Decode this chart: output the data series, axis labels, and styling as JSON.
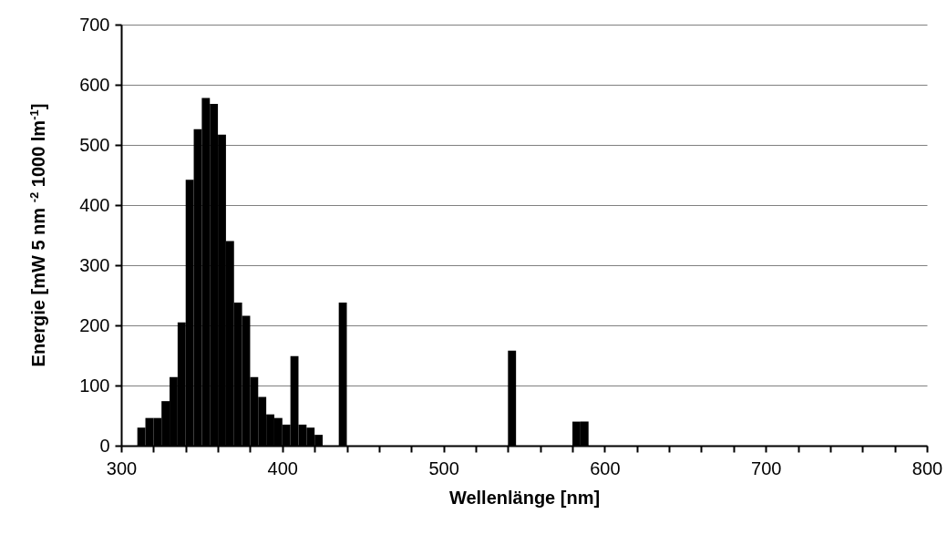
{
  "chart_data": {
    "type": "histogram",
    "xlabel": "Wellenlänge [nm]",
    "ylabel": "Energie [mW 5 nm $^{-2}$ 1000 lm$^{-1}$]",
    "color": "#000000",
    "bins": [
      310,
      315,
      320,
      325,
      330,
      335,
      340,
      345,
      350,
      355,
      360,
      365,
      370,
      375,
      380,
      385,
      390,
      395,
      400,
      405,
      410,
      415,
      420,
      425,
      430,
      435,
      440,
      445,
      450,
      455,
      460,
      465,
      470,
      475,
      480,
      485,
      490,
      495,
      500,
      505,
      510,
      515,
      520,
      525,
      530,
      535,
      540,
      545,
      550,
      555,
      560,
      565,
      570,
      575,
      580,
      585,
      590
    ],
    "values": [
      30,
      46,
      46,
      74,
      114,
      205,
      442,
      526,
      578,
      568,
      517,
      340,
      238,
      216,
      114,
      81,
      52,
      46,
      35,
      149,
      35,
      30,
      18,
      0,
      0,
      238,
      0,
      0,
      0,
      0,
      0,
      0,
      0,
      0,
      0,
      0,
      0,
      0,
      0,
      0,
      0,
      0,
      0,
      0,
      0,
      0,
      158,
      0,
      0,
      0,
      0,
      0,
      0,
      0,
      40,
      40
    ],
    "xlim": [
      300,
      800
    ],
    "xticks": [
      300,
      {
        "value": 320,
        "label": null
      },
      {
        "value": 340,
        "label": null
      },
      {
        "value": 360,
        "label": null
      },
      {
        "value": 380,
        "label": null
      },
      400,
      {
        "value": 420,
        "label": null
      },
      {
        "value": 440,
        "label": null
      },
      {
        "value": 460,
        "label": null
      },
      {
        "value": 480,
        "label": null
      },
      500,
      {
        "value": 520,
        "label": null
      },
      {
        "value": 540,
        "label": null
      },
      {
        "value": 560,
        "label": null
      },
      {
        "value": 580,
        "label": null
      },
      600,
      {
        "value": 620,
        "label": null
      },
      {
        "value": 640,
        "label": null
      },
      {
        "value": 660,
        "label": null
      },
      {
        "value": 680,
        "label": null
      },
      700,
      {
        "value": 720,
        "label": null
      },
      {
        "value": 740,
        "label": null
      },
      {
        "value": 760,
        "label": null
      },
      {
        "value": 780,
        "label": null
      },
      800
    ],
    "ylim": [
      0,
      700
    ],
    "yticks": [
      0,
      100,
      200,
      300,
      400,
      500,
      600,
      700
    ],
    "grid": "y"
  }
}
